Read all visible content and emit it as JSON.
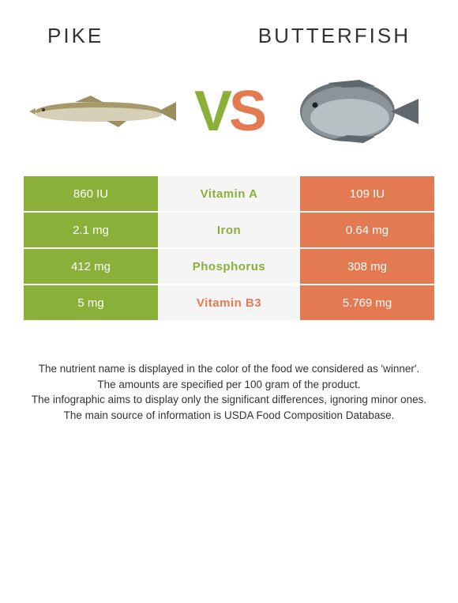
{
  "left_name": "PIKE",
  "right_name": "BUTTERFISH",
  "vs": {
    "v": "V",
    "s": "S"
  },
  "colors": {
    "green": "#8bb03a",
    "orange": "#e37a51",
    "row_bg": "#f5f5f5",
    "text": "#333333"
  },
  "rows": [
    {
      "left": "860 IU",
      "label": "Vitamin A",
      "winner": "green",
      "right": "109 IU"
    },
    {
      "left": "2.1 mg",
      "label": "Iron",
      "winner": "green",
      "right": "0.64 mg"
    },
    {
      "left": "412 mg",
      "label": "Phosphorus",
      "winner": "green",
      "right": "308 mg"
    },
    {
      "left": "5 mg",
      "label": "Vitamin B3",
      "winner": "orange",
      "right": "5.769 mg"
    }
  ],
  "notes": [
    "The nutrient name is displayed in the color of the food we considered as 'winner'.",
    "The amounts are specified per 100 gram of the product.",
    "The infographic aims to display only the significant differences, ignoring minor ones.",
    "The main source of information is USDA Food Composition Database."
  ]
}
